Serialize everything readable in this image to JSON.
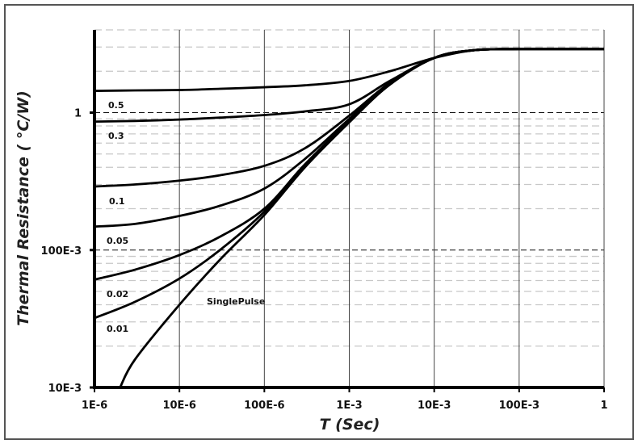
{
  "chart_data": {
    "type": "line",
    "title": "",
    "xlabel": "T (Sec)",
    "ylabel": "Thermal Resistance ( °C/W)",
    "xscale": "log",
    "yscale": "log",
    "xlim": [
      1e-06,
      1
    ],
    "ylim": [
      0.01,
      4
    ],
    "grid": true,
    "x_ticks": [
      {
        "value": 1e-06,
        "label": "1E-6"
      },
      {
        "value": 1e-05,
        "label": "10E-6"
      },
      {
        "value": 0.0001,
        "label": "100E-6"
      },
      {
        "value": 0.001,
        "label": "1E-3"
      },
      {
        "value": 0.01,
        "label": "10E-3"
      },
      {
        "value": 0.1,
        "label": "100E-3"
      },
      {
        "value": 1,
        "label": "1"
      }
    ],
    "y_ticks": [
      {
        "value": 1,
        "label": "1"
      },
      {
        "value": 0.1,
        "label": "100E-3"
      },
      {
        "value": 0.01,
        "label": "10E-3"
      }
    ],
    "x": [
      1e-06,
      3e-06,
      1e-05,
      3e-05,
      0.0001,
      0.0003,
      0.001,
      0.003,
      0.01,
      0.03,
      0.1,
      1
    ],
    "series": [
      {
        "name": "0.5",
        "values": [
          1.44,
          1.45,
          1.46,
          1.49,
          1.53,
          1.58,
          1.7,
          2.0,
          2.5,
          2.85,
          2.9,
          2.9
        ]
      },
      {
        "name": "0.3",
        "values": [
          0.86,
          0.87,
          0.89,
          0.92,
          0.96,
          1.02,
          1.15,
          1.7,
          2.5,
          2.85,
          2.9,
          2.9
        ]
      },
      {
        "name": "0.1",
        "values": [
          0.29,
          0.3,
          0.32,
          0.35,
          0.41,
          0.55,
          0.95,
          1.65,
          2.5,
          2.85,
          2.9,
          2.9
        ]
      },
      {
        "name": "0.05",
        "values": [
          0.148,
          0.155,
          0.177,
          0.21,
          0.28,
          0.46,
          0.9,
          1.62,
          2.5,
          2.85,
          2.9,
          2.9
        ]
      },
      {
        "name": "0.02",
        "values": [
          0.061,
          0.072,
          0.092,
          0.125,
          0.2,
          0.42,
          0.87,
          1.6,
          2.5,
          2.85,
          2.9,
          2.9
        ]
      },
      {
        "name": "0.01",
        "values": [
          0.032,
          0.042,
          0.062,
          0.1,
          0.19,
          0.41,
          0.86,
          1.6,
          2.5,
          2.85,
          2.9,
          2.9
        ]
      },
      {
        "name": "SinglePulse",
        "values": [
          null,
          0.016,
          0.04,
          0.085,
          0.18,
          0.4,
          0.85,
          1.6,
          2.5,
          2.85,
          2.9,
          2.9
        ],
        "start": [
          2e-06,
          0.01
        ]
      }
    ]
  }
}
